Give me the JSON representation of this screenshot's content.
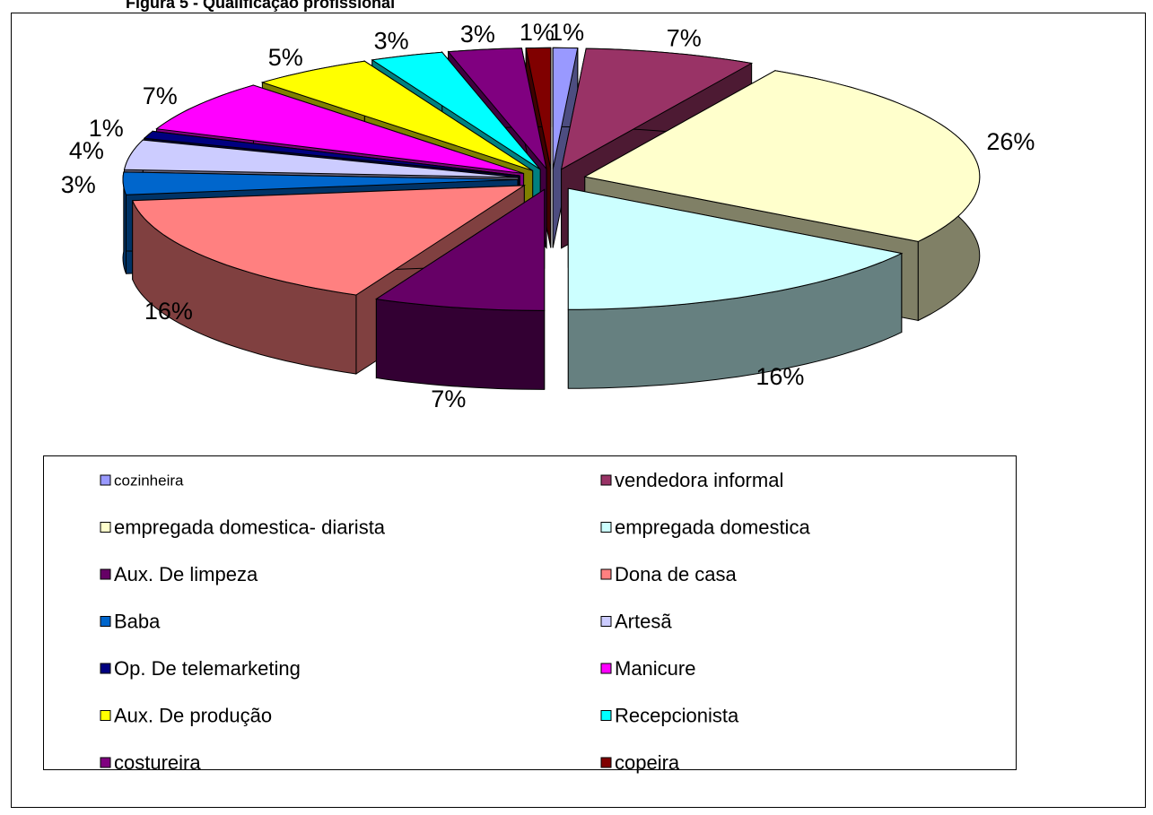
{
  "chart_data": {
    "type": "pie3d",
    "title": "Figura 5 - Qualificação profissional",
    "categories": [
      "cozinheira",
      "vendedora informal",
      "empregada domestica- diarista",
      "empregada domestica",
      "Aux. De limpeza",
      "Dona de casa",
      "Baba",
      "Artesã",
      "Op. De telemarketing",
      "Manicure",
      "Aux. De produção",
      "Recepcionista",
      "costureira",
      "copeira"
    ],
    "values": [
      1,
      7,
      26,
      16,
      7,
      16,
      3,
      4,
      1,
      7,
      5,
      3,
      3,
      1
    ],
    "value_labels": [
      "1%",
      "7%",
      "26%",
      "16%",
      "7%",
      "16%",
      "3%",
      "4%",
      "1%",
      "7%",
      "5%",
      "3%",
      "3%",
      "1%"
    ],
    "colors": [
      "#9999ff",
      "#993366",
      "#ffffcc",
      "#ccffff",
      "#660066",
      "#ff8080",
      "#0066cc",
      "#ccccff",
      "#000080",
      "#ff00ff",
      "#ffff00",
      "#00ffff",
      "#800080",
      "#800000"
    ],
    "legend": "bottom"
  }
}
